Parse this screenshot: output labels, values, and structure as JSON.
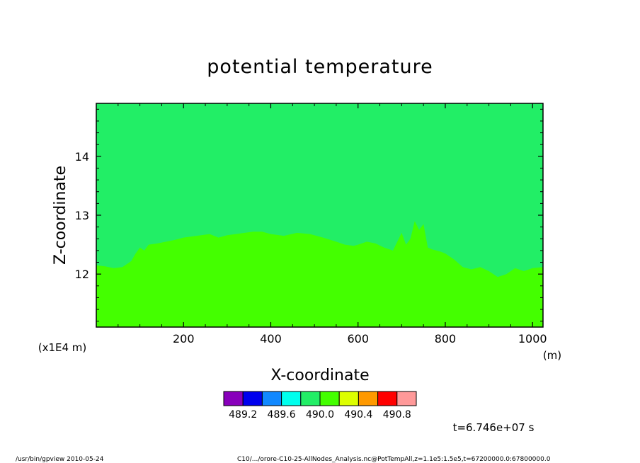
{
  "chart_data": {
    "type": "heatmap",
    "title": "potential temperature",
    "xlabel": "X-coordinate",
    "ylabel": "Z-coordinate",
    "x_unit": "(m)",
    "y_unit": "(x1E4 m)",
    "xlim": [
      0,
      1024
    ],
    "ylim": [
      11.1,
      14.9
    ],
    "x_ticks": [
      200,
      400,
      600,
      800,
      1000
    ],
    "x_tick_labels": [
      "200",
      "400",
      "600",
      "800",
      "1000"
    ],
    "y_ticks": [
      12,
      13,
      14
    ],
    "y_tick_labels": [
      "12",
      "13",
      "14"
    ],
    "boundary": {
      "description_free": true,
      "x": [
        0,
        20,
        40,
        60,
        80,
        90,
        100,
        110,
        120,
        140,
        160,
        180,
        200,
        230,
        260,
        280,
        300,
        320,
        340,
        360,
        380,
        400,
        430,
        460,
        490,
        520,
        550,
        570,
        590,
        600,
        620,
        640,
        660,
        680,
        690,
        700,
        710,
        720,
        730,
        740,
        750,
        760,
        770,
        780,
        790,
        800,
        820,
        840,
        860,
        880,
        900,
        920,
        940,
        960,
        980,
        1000,
        1024
      ],
      "z": [
        12.15,
        12.13,
        12.1,
        12.12,
        12.22,
        12.35,
        12.45,
        12.4,
        12.5,
        12.52,
        12.55,
        12.58,
        12.62,
        12.65,
        12.68,
        12.62,
        12.66,
        12.68,
        12.7,
        12.72,
        12.72,
        12.68,
        12.65,
        12.7,
        12.68,
        12.62,
        12.55,
        12.5,
        12.48,
        12.5,
        12.55,
        12.52,
        12.45,
        12.4,
        12.55,
        12.7,
        12.5,
        12.6,
        12.9,
        12.75,
        12.85,
        12.45,
        12.42,
        12.4,
        12.38,
        12.35,
        12.25,
        12.12,
        12.08,
        12.12,
        12.05,
        11.95,
        12.0,
        12.1,
        12.05,
        12.1,
        12.12
      ]
    },
    "regions": [
      {
        "name": "upper",
        "color": "#22ee66",
        "range": [
          490.0,
          490.2
        ]
      },
      {
        "name": "lower",
        "color": "#44ff00",
        "range": [
          490.2,
          490.4
        ]
      }
    ]
  },
  "colorbar": {
    "colors": [
      "#8800bb",
      "#0000ee",
      "#1188ff",
      "#00ffee",
      "#22ee66",
      "#44ff00",
      "#ddff00",
      "#ff9900",
      "#ff0000",
      "#ff9999"
    ],
    "labels": [
      "489.2",
      "489.6",
      "490.0",
      "490.4",
      "490.8"
    ]
  },
  "time_label": "t=6.746e+07 s",
  "footer": {
    "left": "/usr/bin/gpview   2010-05-24",
    "right": "C10/.../orore-C10-25-AllNodes_Analysis.nc@PotTempAll,z=1.1e5:1.5e5,t=67200000.0:67800000.0"
  }
}
